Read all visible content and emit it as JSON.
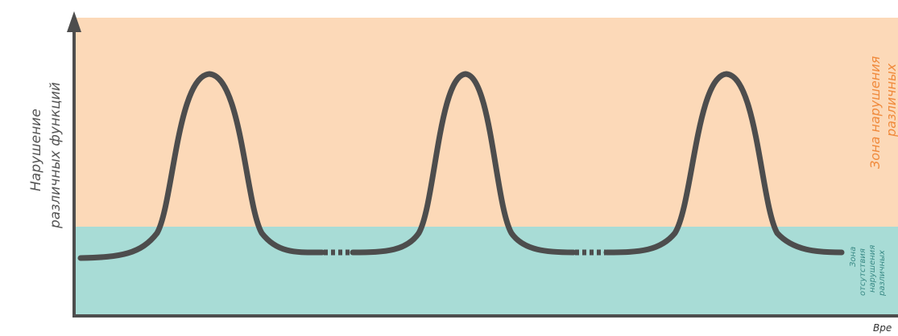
{
  "y_axis_label": [
    "Нарушение",
    "различных функций"
  ],
  "x_axis_label": "Вре",
  "zones": {
    "upper": {
      "label": [
        "Зона нарушения",
        "различных"
      ],
      "color": "#fcd9b8",
      "text_color": "#f08a3c"
    },
    "lower": {
      "label": [
        "Зона",
        "отсутствия",
        "нарушения",
        "различных"
      ],
      "color": "#a8dcd6",
      "text_color": "#3a8a86"
    }
  },
  "curve": {
    "color": "#4d4d4d",
    "peaks": 3
  }
}
